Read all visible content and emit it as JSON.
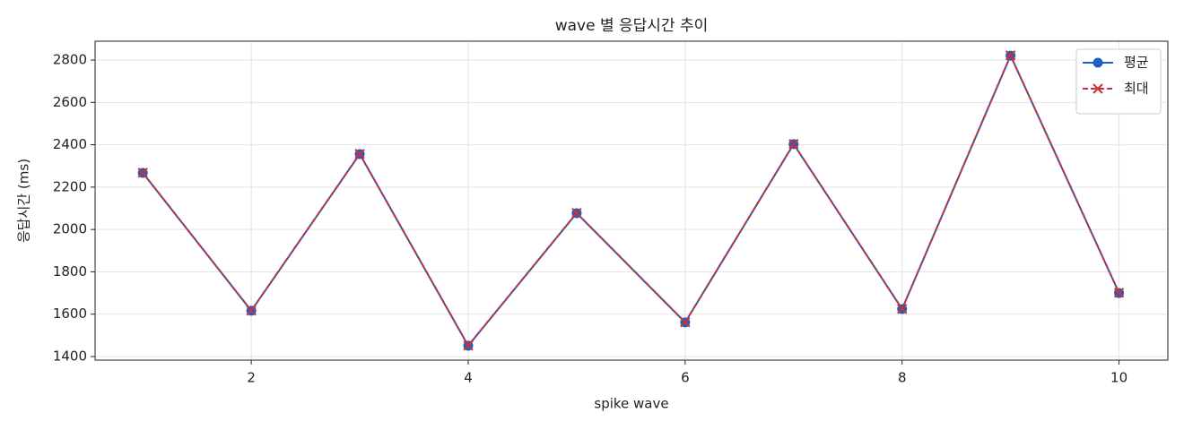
{
  "chart_data": {
    "type": "line",
    "title": "wave 별 응답시간 추이",
    "xlabel": "spike wave",
    "ylabel": "응답시간 (ms)",
    "x": [
      1,
      2,
      3,
      4,
      5,
      6,
      7,
      8,
      9,
      10
    ],
    "series": [
      {
        "name": "평균",
        "color": "#1f5fbf",
        "marker": "o",
        "linestyle": "solid",
        "values": [
          2267,
          1616,
          2356,
          1451,
          2077,
          1561,
          2403,
          1624,
          2821,
          1700
        ]
      },
      {
        "name": "최대",
        "color": "#c8323a",
        "marker": "x",
        "linestyle": "dashed",
        "values": [
          2268,
          1617,
          2357,
          1452,
          2078,
          1562,
          2404,
          1625,
          2822,
          1701
        ]
      }
    ],
    "xlim": [
      0.56,
      10.45
    ],
    "ylim": [
      1383,
      2889
    ],
    "xticks": [
      2,
      4,
      6,
      8,
      10
    ],
    "yticks": [
      1400,
      1600,
      1800,
      2000,
      2200,
      2400,
      2600,
      2800
    ],
    "grid": true,
    "legend": "upper right"
  }
}
